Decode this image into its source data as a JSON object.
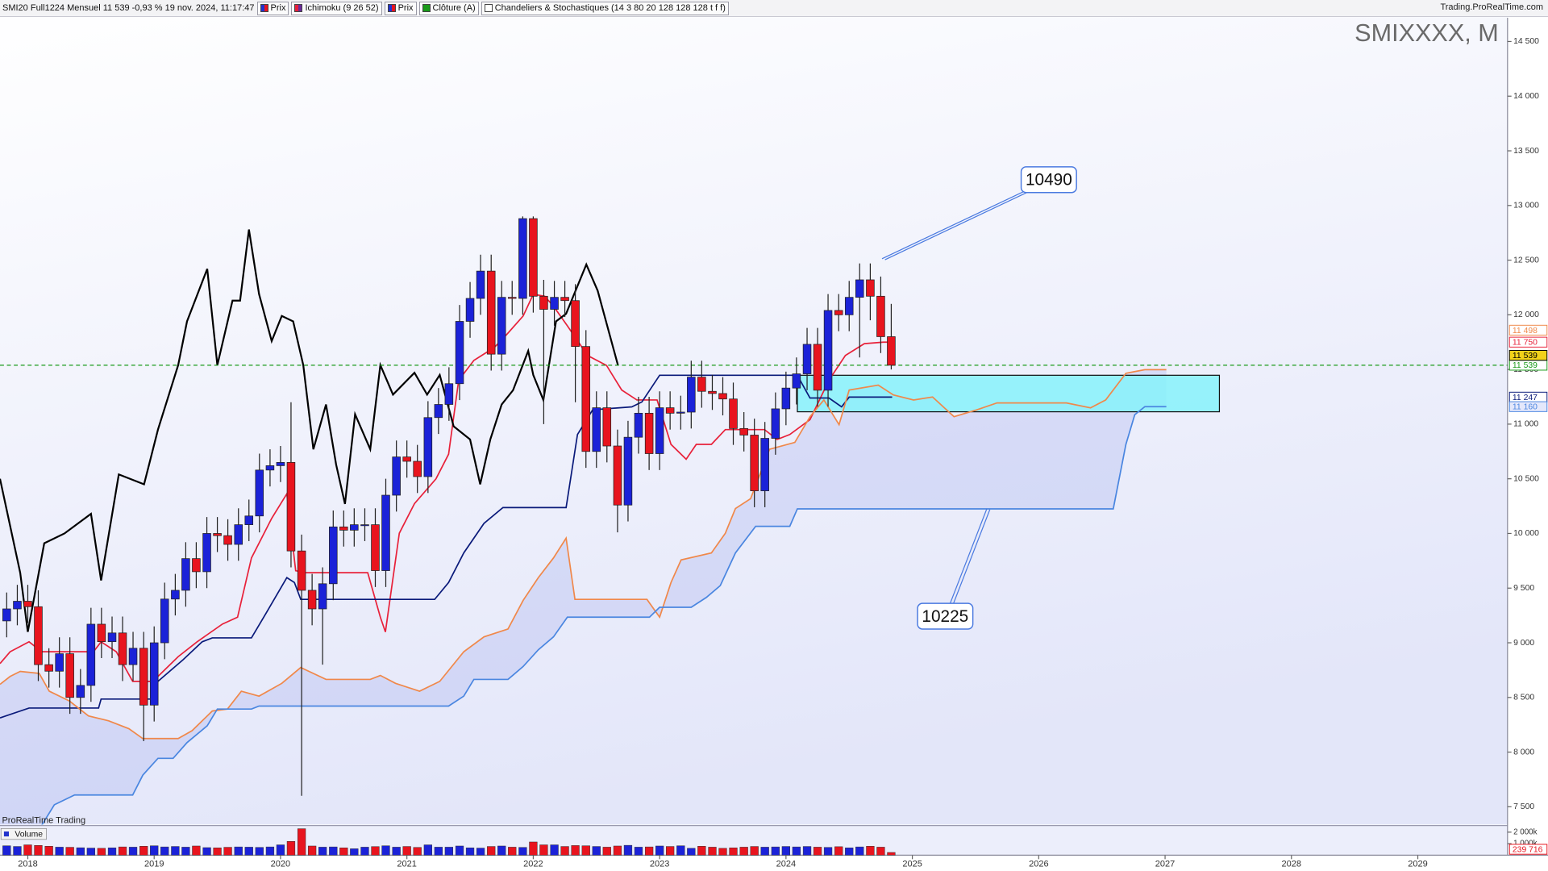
{
  "header": {
    "info": "SMI20 Full1224 Mensuel 11 539 -0,93 % 19 nov. 2024, 11:17:47",
    "items": [
      "Prix",
      "Ichimoku (9 26 52)",
      "Prix",
      "Clôture (A)",
      "Chandeliers & Stochastiques (14 3 80 20 128 128 128 t f f)"
    ],
    "source": "Trading.ProRealTime.com"
  },
  "watermark": "ProRealTime Trading",
  "chart_data": {
    "type": "candlestick",
    "title": "SMIXXXX, M",
    "xlim": [
      2017.78,
      2029.71
    ],
    "xticks": [
      2018,
      2019,
      2020,
      2021,
      2022,
      2023,
      2024,
      2025,
      2026,
      2027,
      2028,
      2029
    ],
    "ylim": [
      7337,
      14717
    ],
    "yticks": [
      {
        "value": 7500,
        "label": "7 500"
      },
      {
        "value": 8000,
        "label": "8 000"
      },
      {
        "value": 8500,
        "label": "8 500"
      },
      {
        "value": 9000,
        "label": "9 000"
      },
      {
        "value": 9500,
        "label": "9 500"
      },
      {
        "value": 10000,
        "label": "10 000"
      },
      {
        "value": 10500,
        "label": "10 500"
      },
      {
        "value": 11000,
        "label": "11 000"
      },
      {
        "value": 11500,
        "label": "11 500"
      },
      {
        "value": 12000,
        "label": "12 000"
      },
      {
        "value": 12500,
        "label": "12 500"
      },
      {
        "value": 13000,
        "label": "13 000"
      },
      {
        "value": 13500,
        "label": "13 500"
      },
      {
        "value": 14000,
        "label": "14 000"
      },
      {
        "value": 14500,
        "label": "14 500"
      }
    ],
    "candles": {
      "up_color": "#1b22d8",
      "down_color": "#e8141e",
      "x": [
        2017.833,
        2017.917,
        2018.0,
        2018.083,
        2018.167,
        2018.25,
        2018.333,
        2018.417,
        2018.5,
        2018.583,
        2018.667,
        2018.75,
        2018.833,
        2018.917,
        2019.0,
        2019.083,
        2019.167,
        2019.25,
        2019.333,
        2019.417,
        2019.5,
        2019.583,
        2019.667,
        2019.75,
        2019.833,
        2019.917,
        2020.0,
        2020.083,
        2020.167,
        2020.25,
        2020.333,
        2020.417,
        2020.5,
        2020.583,
        2020.667,
        2020.75,
        2020.833,
        2020.917,
        2021.0,
        2021.083,
        2021.167,
        2021.25,
        2021.333,
        2021.417,
        2021.5,
        2021.583,
        2021.667,
        2021.75,
        2021.833,
        2021.917,
        2022.0,
        2022.083,
        2022.167,
        2022.25,
        2022.333,
        2022.417,
        2022.5,
        2022.583,
        2022.667,
        2022.75,
        2022.833,
        2022.917,
        2023.0,
        2023.083,
        2023.167,
        2023.25,
        2023.333,
        2023.417,
        2023.5,
        2023.583,
        2023.667,
        2023.75,
        2023.833,
        2023.917,
        2024.0,
        2024.083,
        2024.167,
        2024.25,
        2024.333,
        2024.417,
        2024.5,
        2024.583,
        2024.667,
        2024.75,
        2024.833
      ],
      "open": [
        9200,
        9310,
        9380,
        9330,
        8800,
        8740,
        8900,
        8500,
        8610,
        9170,
        9010,
        9090,
        8800,
        8950,
        8430,
        9000,
        9400,
        9480,
        9770,
        9650,
        10000,
        9980,
        9900,
        10080,
        10160,
        10580,
        10620,
        10650,
        9840,
        9480,
        9310,
        9540,
        10060,
        10030,
        10080,
        10080,
        9660,
        10350,
        10700,
        10660,
        10520,
        11060,
        11180,
        11370,
        11940,
        12150,
        12400,
        11640,
        12160,
        12150,
        12880,
        12170,
        12050,
        12160,
        12130,
        11710,
        10750,
        11150,
        10800,
        10260,
        10880,
        11100,
        10730,
        11150,
        11100,
        11110,
        11430,
        11300,
        11280,
        11230,
        10960,
        10900,
        10390,
        10870,
        11140,
        11330,
        11460,
        11730,
        11310,
        12040,
        12000,
        12160,
        12320,
        12170,
        11800
      ],
      "high": [
        9460,
        9530,
        9530,
        9480,
        8950,
        9050,
        9050,
        8760,
        9320,
        9320,
        9240,
        9240,
        9100,
        9100,
        9150,
        9550,
        9630,
        9920,
        9920,
        10150,
        10150,
        10130,
        10230,
        10310,
        10730,
        10770,
        10800,
        11200,
        9990,
        9630,
        9690,
        10210,
        10210,
        10230,
        10230,
        10230,
        10500,
        10850,
        10850,
        10810,
        11210,
        11330,
        11520,
        12090,
        12300,
        12550,
        12550,
        12310,
        12310,
        12900,
        12900,
        12320,
        12310,
        12310,
        12280,
        11860,
        11300,
        11300,
        10950,
        11030,
        11250,
        11250,
        11300,
        11300,
        11260,
        11580,
        11580,
        11450,
        11430,
        11380,
        11110,
        11050,
        11020,
        11290,
        11480,
        11610,
        11880,
        11880,
        12190,
        12190,
        12310,
        12470,
        12470,
        12350,
        12100
      ],
      "low": [
        9050,
        9160,
        9180,
        8650,
        8590,
        8590,
        8350,
        8350,
        8460,
        8860,
        8860,
        8650,
        8650,
        8100,
        8280,
        8850,
        9250,
        9330,
        9500,
        9500,
        9830,
        9750,
        9750,
        9930,
        10010,
        10430,
        10470,
        9690,
        7600,
        9160,
        8800,
        9390,
        9880,
        9880,
        9930,
        9510,
        9510,
        10200,
        10510,
        10370,
        10370,
        10910,
        11030,
        11220,
        11790,
        12000,
        11490,
        11490,
        12000,
        12000,
        12020,
        11000,
        11900,
        11980,
        11200,
        10600,
        10600,
        10650,
        10010,
        10110,
        10730,
        10580,
        10580,
        10950,
        10950,
        10960,
        11150,
        11130,
        11080,
        10810,
        10750,
        10240,
        10240,
        10720,
        10990,
        11180,
        11310,
        11160,
        11160,
        11850,
        11850,
        11610,
        11950,
        11650,
        11500
      ],
      "close": [
        9310,
        9380,
        9330,
        8800,
        8740,
        8900,
        8500,
        8610,
        9170,
        9010,
        9090,
        8800,
        8950,
        8430,
        9000,
        9400,
        9480,
        9770,
        9650,
        10000,
        9980,
        9900,
        10080,
        10160,
        10580,
        10620,
        10650,
        9840,
        9480,
        9310,
        9540,
        10060,
        10030,
        10080,
        10080,
        9660,
        10350,
        10700,
        10660,
        10520,
        11060,
        11180,
        11370,
        11940,
        12150,
        12400,
        11640,
        12160,
        12150,
        12880,
        12170,
        12050,
        12160,
        12130,
        11710,
        10750,
        11150,
        10800,
        10260,
        10880,
        11100,
        10730,
        11150,
        11100,
        11110,
        11430,
        11300,
        11280,
        11230,
        10960,
        10900,
        10390,
        10870,
        11140,
        11330,
        11460,
        11730,
        11310,
        12040,
        12000,
        12160,
        12320,
        12170,
        11800,
        11539
      ]
    },
    "series": [
      {
        "color": "#e8213a",
        "x": [
          2017.78,
          2017.86,
          2018.01,
          2018.11,
          2018.52,
          2018.58,
          2018.7,
          2018.83,
          2018.99,
          2019.19,
          2019.34,
          2019.54,
          2019.66,
          2019.77,
          2019.93,
          2020.05,
          2020.12,
          2020.2,
          2020.44,
          2020.69,
          2020.79,
          2020.83,
          2020.94,
          2021.06,
          2021.23,
          2021.33,
          2021.41,
          2021.53,
          2021.69,
          2021.76,
          2021.92,
          2022.0,
          2022.09,
          2022.16,
          2022.27,
          2022.43,
          2022.58,
          2022.7,
          2022.82,
          2022.98,
          2023.09,
          2023.21,
          2023.29,
          2023.41,
          2023.52,
          2023.83,
          2023.93,
          2024.03,
          2024.19,
          2024.34,
          2024.47,
          2024.62,
          2024.77,
          2024.84
        ],
        "values": [
          8810,
          8918,
          9009,
          8918,
          8918,
          9009,
          8918,
          8647,
          8647,
          8873,
          9009,
          9171,
          9234,
          9776,
          10138,
          10363,
          9659,
          9641,
          9641,
          9641,
          9234,
          9099,
          10002,
          10273,
          10499,
          10725,
          11402,
          11583,
          11700,
          11781,
          11989,
          12188,
          12170,
          12079,
          11899,
          11628,
          11537,
          11312,
          11221,
          11221,
          10815,
          10679,
          10815,
          10815,
          10950,
          10950,
          10860,
          10905,
          11041,
          11402,
          11628,
          11736,
          11750,
          11750
        ]
      },
      {
        "color": "#0a1a7a",
        "x": [
          2017.78,
          2018.01,
          2018.56,
          2018.58,
          2018.99,
          2019.03,
          2019.23,
          2019.38,
          2019.46,
          2019.77,
          2019.89,
          2020.05,
          2020.11,
          2020.16,
          2021.22,
          2021.33,
          2021.45,
          2021.61,
          2021.76,
          2022.26,
          2022.35,
          2022.47,
          2022.78,
          2022.86,
          2023.0,
          2024.09,
          2024.19,
          2024.34,
          2024.44,
          2024.5,
          2024.84
        ],
        "values": [
          8313,
          8403,
          8403,
          8485,
          8485,
          8647,
          8846,
          9009,
          9045,
          9045,
          9279,
          9596,
          9551,
          9397,
          9397,
          9551,
          9822,
          10092,
          10237,
          10237,
          10905,
          11131,
          11158,
          11203,
          11447,
          11447,
          11239,
          11239,
          11158,
          11247,
          11247
        ]
      },
      {
        "color": "#000000",
        "x": [
          2017.78,
          2017.94,
          2018.0,
          2018.13,
          2018.29,
          2018.5,
          2018.58,
          2018.72,
          2018.92,
          2019.03,
          2019.19,
          2019.26,
          2019.42,
          2019.5,
          2019.62,
          2019.68,
          2019.75,
          2019.83,
          2019.93,
          2020.01,
          2020.1,
          2020.18,
          2020.26,
          2020.36,
          2020.44,
          2020.51,
          2020.59,
          2020.71,
          2020.79,
          2020.89,
          2021.06,
          2021.16,
          2021.26,
          2021.37,
          2021.5,
          2021.58,
          2021.66,
          2021.75,
          2021.84,
          2021.96,
          2022.0,
          2022.08,
          2022.18,
          2022.26,
          2022.42,
          2022.51,
          2022.67
        ],
        "values": [
          10500,
          9640,
          9100,
          9910,
          10000,
          10180,
          9570,
          10540,
          10450,
          10950,
          11540,
          11940,
          12420,
          11540,
          12130,
          12130,
          12780,
          12190,
          11760,
          11990,
          11940,
          11540,
          10770,
          11180,
          10630,
          10270,
          11090,
          10770,
          11540,
          11270,
          11470,
          11270,
          11450,
          10980,
          10860,
          10450,
          10860,
          11180,
          11310,
          11670,
          11450,
          11220,
          11940,
          12010,
          12460,
          12220,
          11540
        ]
      },
      {
        "color": "#f0884a",
        "x": [
          2017.78,
          2017.86,
          2017.94,
          2018.09,
          2018.17,
          2018.33,
          2018.48,
          2018.64,
          2018.8,
          2018.91,
          2019.19,
          2019.3,
          2019.46,
          2019.58,
          2019.69,
          2019.83,
          2020.01,
          2020.16,
          2020.36,
          2020.71,
          2020.79,
          2020.91,
          2021.1,
          2021.26,
          2021.45,
          2021.61,
          2021.8,
          2021.92,
          2022.04,
          2022.16,
          2022.26,
          2022.33,
          2022.9,
          2023.0,
          2023.09,
          2023.17,
          2023.41,
          2023.52,
          2023.6,
          2023.72,
          2023.87,
          2024.07,
          2024.19,
          2024.3,
          2024.42,
          2024.5,
          2024.73,
          2024.85,
          2025.01,
          2025.16,
          2025.33,
          2025.51,
          2025.67,
          2026.22,
          2026.41,
          2026.53,
          2026.69,
          2026.84,
          2027.01
        ],
        "values": [
          8620,
          8692,
          8738,
          8720,
          8557,
          8467,
          8331,
          8286,
          8214,
          8124,
          8124,
          8196,
          8376,
          8394,
          8557,
          8512,
          8629,
          8774,
          8665,
          8665,
          8701,
          8629,
          8557,
          8647,
          8918,
          9054,
          9126,
          9388,
          9596,
          9776,
          9957,
          9397,
          9397,
          9234,
          9551,
          9758,
          9822,
          10002,
          10228,
          10318,
          10770,
          10833,
          11068,
          11221,
          10995,
          11312,
          11357,
          11267,
          11221,
          11248,
          11068,
          11131,
          11194,
          11194,
          11149,
          11221,
          11465,
          11498,
          11498
        ]
      },
      {
        "color": "#4a86e0",
        "x": [
          2017.78,
          2018.09,
          2018.21,
          2018.37,
          2018.83,
          2018.91,
          2019.03,
          2019.15,
          2019.26,
          2019.42,
          2019.5,
          2019.77,
          2019.83,
          2021.33,
          2021.45,
          2021.53,
          2021.8,
          2021.92,
          2022.04,
          2022.16,
          2022.27,
          2022.92,
          2023.0,
          2023.25,
          2023.37,
          2023.48,
          2023.6,
          2023.76,
          2024.03,
          2024.09,
          2026.59,
          2026.69,
          2026.76,
          2026.84,
          2027.01
        ],
        "values": [
          7293,
          7293,
          7518,
          7608,
          7608,
          7789,
          7943,
          7943,
          8087,
          8241,
          8394,
          8394,
          8421,
          8421,
          8512,
          8665,
          8665,
          8783,
          8936,
          9054,
          9234,
          9234,
          9325,
          9325,
          9415,
          9523,
          9822,
          10065,
          10065,
          10225,
          10225,
          10815,
          11086,
          11160,
          11160
        ]
      }
    ],
    "cloud_color": "#8a98ea",
    "last_price_line": {
      "color": "#1a9a1a",
      "dashed": true
    },
    "zone": {
      "x": [
        2024.09,
        2027.43
      ],
      "y": [
        11113,
        11447
      ],
      "color": "#86f2fa"
    },
    "annotations": [
      {
        "text": "10490",
        "x": 2026.08,
        "y": 13236,
        "target_x": 2024.76,
        "target_y": 12513
      },
      {
        "text": "10225",
        "x": 2025.26,
        "y": 9243,
        "target_x": 2025.59,
        "target_y": 10228
      }
    ],
    "price_markers": [
      {
        "value": 11750,
        "label": "11 750",
        "color": "#e8213a",
        "background": "#ffffff"
      },
      {
        "value": 11539,
        "label": "11 539",
        "color": "#1a9a1a",
        "background": "#ffffff"
      },
      {
        "value": 11498,
        "label": "11 498",
        "color": "#f0884a",
        "background": "#ffffff"
      },
      {
        "value": 11247,
        "label": "11 247",
        "color": "#0a1a7a",
        "background": "#ffffff"
      },
      {
        "value": 11160,
        "label": "11 160",
        "color": "#4a86e0",
        "background": "#e4e8fb"
      },
      {
        "value": 11539,
        "label": "11 539",
        "color": "#000000",
        "background": "#f2d21a"
      }
    ],
    "volume": {
      "label": "Volume",
      "ylim": [
        0,
        2400000
      ],
      "yticks": [
        {
          "value": 1000000,
          "label": "1 000k"
        },
        {
          "value": 2000000,
          "label": "2 000k"
        }
      ],
      "values": [
        820000,
        760000,
        900000,
        850000,
        780000,
        700000,
        690000,
        650000,
        620000,
        600000,
        640000,
        720000,
        700000,
        780000,
        820000,
        720000,
        760000,
        700000,
        800000,
        660000,
        640000,
        690000,
        720000,
        700000,
        680000,
        720000,
        900000,
        1200000,
        2300000,
        800000,
        700000,
        720000,
        640000,
        560000,
        700000,
        750000,
        820000,
        700000,
        760000,
        680000,
        900000,
        700000,
        700000,
        800000,
        640000,
        620000,
        760000,
        800000,
        700000,
        680000,
        1150000,
        900000,
        900000,
        760000,
        840000,
        820000,
        760000,
        700000,
        800000,
        860000,
        700000,
        720000,
        800000,
        760000,
        820000,
        600000,
        780000,
        700000,
        600000,
        640000,
        700000,
        760000,
        700000,
        720000,
        760000,
        720000,
        760000,
        700000,
        680000,
        740000,
        640000,
        720000,
        780000,
        700000,
        239716
      ],
      "value_label": "239 716"
    }
  }
}
